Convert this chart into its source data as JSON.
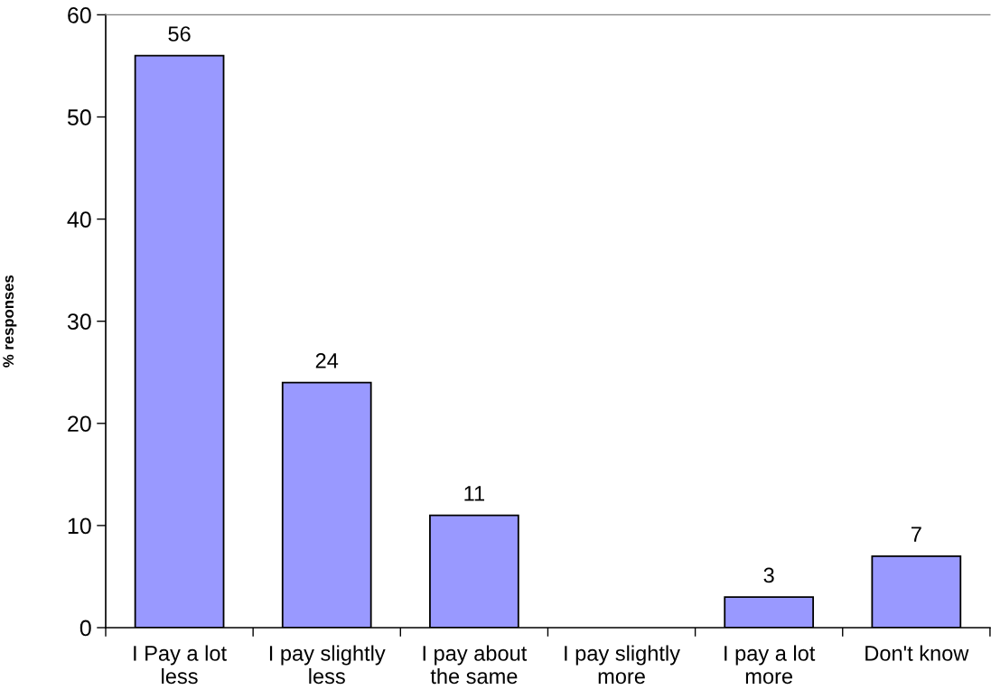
{
  "chart_data": {
    "type": "bar",
    "ylabel": "% responses",
    "categories": [
      "I Pay a lot\nless",
      "I pay slightly\nless",
      "I pay about\nthe same",
      "I pay slightly\nmore",
      "I pay a lot\nmore",
      "Don't know"
    ],
    "values": [
      56,
      24,
      11,
      null,
      3,
      7
    ],
    "color": "#9999ff",
    "ylim": [
      0,
      60
    ],
    "yticks": [
      0,
      10,
      20,
      30,
      40,
      50,
      60
    ],
    "grid": false,
    "data_labels": true
  }
}
